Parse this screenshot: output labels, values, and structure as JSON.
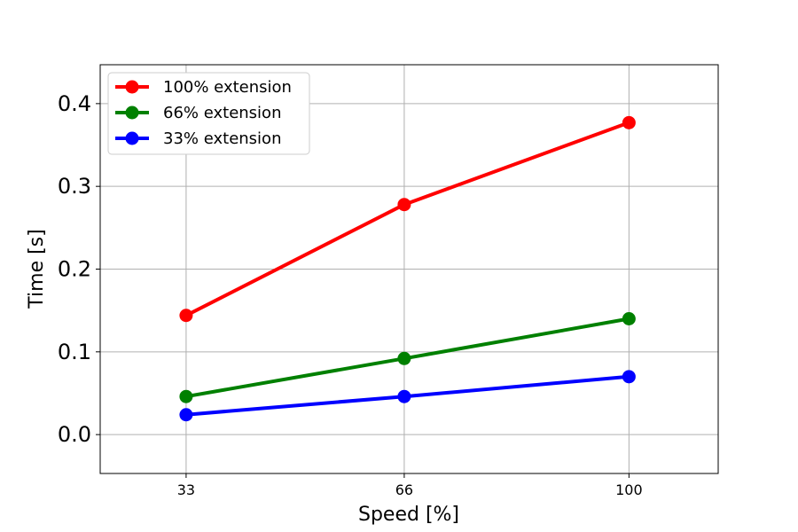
{
  "chart_data": {
    "type": "line",
    "title": "",
    "xlabel": "Speed [%]",
    "ylabel": "Time [s]",
    "x_categories": [
      "33",
      "66",
      "100"
    ],
    "x": [
      33,
      66,
      100
    ],
    "xlim": [
      20,
      113.5
    ],
    "ylim": [
      -0.047,
      0.447
    ],
    "yticks": [
      0.0,
      0.1,
      0.2,
      0.3,
      0.4
    ],
    "ytick_labels": [
      "0.0",
      "0.1",
      "0.2",
      "0.3",
      "0.4"
    ],
    "grid": true,
    "legend_position": "upper-left",
    "series": [
      {
        "name": "100% extension",
        "color": "#ff0000",
        "values": [
          0.144,
          0.278,
          0.377
        ]
      },
      {
        "name": "66% extension",
        "color": "#008000",
        "values": [
          0.046,
          0.092,
          0.14
        ]
      },
      {
        "name": "33% extension",
        "color": "#0000ff",
        "values": [
          0.024,
          0.046,
          0.07
        ]
      }
    ]
  }
}
